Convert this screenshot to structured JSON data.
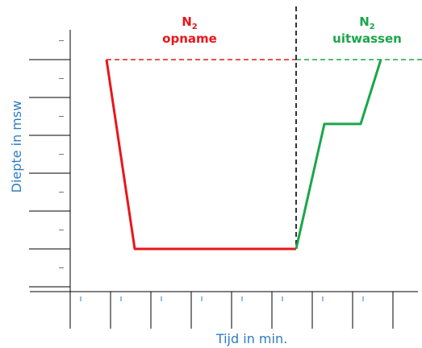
{
  "chart_data": {
    "type": "line",
    "xlabel": "Tijd in min.",
    "ylabel": "Diepte in msw",
    "annotations": [
      {
        "name": "uptake",
        "element": "N",
        "subscript": "2",
        "text": "opname",
        "color": "#e8161b"
      },
      {
        "name": "washout",
        "element": "N",
        "subscript": "2",
        "text": "uitwassen",
        "color": "#1aa64a"
      }
    ],
    "series": [
      {
        "key": "uptake",
        "color": "#e8161b",
        "points": [
          [
            0.9,
            0
          ],
          [
            1.6,
            5
          ],
          [
            5.6,
            5
          ]
        ]
      },
      {
        "key": "washout",
        "color": "#1aa64a",
        "points": [
          [
            5.6,
            5
          ],
          [
            6.3,
            1.7
          ],
          [
            7.2,
            1.7
          ],
          [
            7.7,
            0
          ]
        ]
      }
    ],
    "reference_lines": [
      {
        "type": "horizontal",
        "y": 0,
        "x_from": 0.9,
        "x_to": 5.6,
        "color": "#e8161b",
        "style": "dashed"
      },
      {
        "type": "horizontal",
        "y": 0,
        "x_from": 5.6,
        "x_to": 8.8,
        "color": "#1aa64a",
        "style": "dashed"
      },
      {
        "type": "vertical",
        "x": 5.6,
        "color": "#000000",
        "style": "dashed"
      }
    ],
    "xlim": [
      -1,
      8.8
    ],
    "ylim": [
      0,
      6.1
    ],
    "y_inverted": true,
    "x_major_ticks": [
      0,
      1,
      2,
      3,
      4,
      5,
      6,
      7,
      8
    ],
    "x_minor_ticks": [
      0.5,
      1.5,
      2.5,
      3.5,
      4.5,
      5.5,
      6.5,
      7.5
    ],
    "y_major_ticks": [
      0,
      1,
      2,
      3,
      4,
      5,
      6
    ],
    "y_minor_ticks": [
      -0.5,
      0.5,
      1.5,
      2.5,
      3.5,
      4.5,
      5.5
    ],
    "grid": false,
    "legend": "none"
  }
}
